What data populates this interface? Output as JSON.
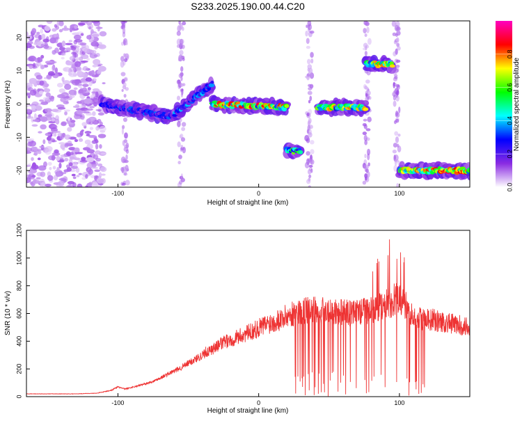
{
  "figure_title": "S233.2025.190.00.44.C20",
  "chart_data": [
    {
      "type": "heatmap",
      "title": "S233.2025.190.00.44.C20",
      "xlabel": "Height of straight line (km)",
      "ylabel": "Frequency (Hz)",
      "xlim": [
        -165,
        150
      ],
      "ylim": [
        -25,
        25
      ],
      "xticks": [
        -100,
        0,
        100
      ],
      "yticks": [
        -20,
        -10,
        0,
        10,
        20
      ],
      "grid": false,
      "colorbar": {
        "label": "Normalized spectral amplitude",
        "range": [
          0,
          1
        ],
        "ticks": [
          0.0,
          0.2,
          0.4,
          0.6,
          0.8
        ],
        "colormap": [
          "#ffffff",
          "#8a2be2",
          "#0000ff",
          "#00ffff",
          "#00ff00",
          "#ffff00",
          "#ff0000",
          "#ff00c0"
        ]
      },
      "tracks": [
        {
          "x": [
            -112,
            -60
          ],
          "y": [
            0,
            -4
          ],
          "peak": 0.35
        },
        {
          "x": [
            -60,
            -33
          ],
          "y": [
            -3,
            6
          ],
          "peak": 0.4
        },
        {
          "x": [
            -33,
            20
          ],
          "y": [
            0,
            -1
          ],
          "peak": 0.9
        },
        {
          "x": [
            20,
            30
          ],
          "y": [
            -14,
            -14
          ],
          "peak": 0.7
        },
        {
          "x": [
            42,
            76
          ],
          "y": [
            -1,
            -1
          ],
          "peak": 0.8
        },
        {
          "x": [
            76,
            95
          ],
          "y": [
            12,
            12
          ],
          "peak": 0.8
        },
        {
          "x": [
            100,
            150
          ],
          "y": [
            -20,
            -20
          ],
          "peak": 0.9
        }
      ]
    },
    {
      "type": "line",
      "xlabel": "Height of straight line (km)",
      "ylabel": "SNR (10 * v/v)",
      "xlim": [
        -165,
        150
      ],
      "ylim": [
        0,
        1200
      ],
      "xticks": [
        -100,
        0,
        100
      ],
      "yticks": [
        0,
        200,
        400,
        600,
        800,
        1000,
        1200
      ],
      "grid": false,
      "series_color": "#ee3333",
      "x": [
        -165,
        -150,
        -130,
        -115,
        -105,
        -100,
        -95,
        -85,
        -75,
        -65,
        -55,
        -45,
        -35,
        -25,
        -15,
        -5,
        5,
        15,
        25,
        35,
        45,
        55,
        65,
        75,
        85,
        90,
        95,
        100,
        105,
        110,
        120,
        130,
        140,
        150
      ],
      "y": [
        20,
        20,
        20,
        25,
        45,
        70,
        55,
        80,
        110,
        160,
        210,
        270,
        330,
        390,
        430,
        470,
        520,
        560,
        600,
        620,
        630,
        620,
        600,
        620,
        640,
        670,
        690,
        720,
        640,
        570,
        560,
        540,
        520,
        500
      ]
    }
  ]
}
